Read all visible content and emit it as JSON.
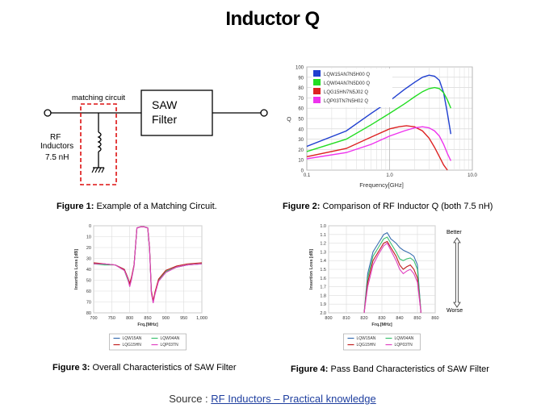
{
  "title": "Inductor Q",
  "fig1": {
    "matching_label": "matching circuit",
    "saw_line1": "SAW",
    "saw_line2": "Filter",
    "rf_line1": "RF",
    "rf_line2": "Inductors",
    "rf_line3": "7.5 nH",
    "caption_bold": "Figure 1:",
    "caption_text": " Example of a Matching Circuit."
  },
  "fig2": {
    "caption_bold": "Figure 2:",
    "caption_text": " Comparison of RF Inductor Q  (both 7.5 nH)",
    "chart_data": {
      "type": "line",
      "title": "",
      "xlabel": "Frequency[GHz]",
      "ylabel": "Q",
      "xscale": "log",
      "xlim": [
        0.1,
        10
      ],
      "ylim": [
        0,
        100
      ],
      "xticks": [
        "0.1",
        "1.0",
        "10.0"
      ],
      "yticks": [
        "0",
        "10",
        "20",
        "30",
        "40",
        "50",
        "60",
        "70",
        "80",
        "90",
        "100"
      ],
      "legend_position": "top-left",
      "grid": true,
      "series": [
        {
          "name": "LQW15AN7N5H00 Q",
          "color": "#1f3fd0",
          "x": [
            0.1,
            0.3,
            0.6,
            1.0,
            1.5,
            2.0,
            2.5,
            3.0,
            3.5,
            4.0,
            4.5,
            5.0,
            5.5
          ],
          "y": [
            23,
            38,
            55,
            67,
            78,
            85,
            90,
            92,
            91,
            87,
            75,
            55,
            35
          ]
        },
        {
          "name": "LQW04AN7N5D00 Q",
          "color": "#22dd22",
          "x": [
            0.1,
            0.3,
            0.6,
            1.0,
            1.5,
            2.0,
            2.5,
            3.0,
            3.5,
            4.0,
            4.5,
            5.0,
            5.5
          ],
          "y": [
            18,
            30,
            44,
            55,
            64,
            71,
            76,
            79,
            80,
            79,
            75,
            68,
            60
          ]
        },
        {
          "name": "LQG15HN7N5J02 Q",
          "color": "#dd2222",
          "x": [
            0.1,
            0.3,
            0.6,
            1.0,
            1.3,
            1.6,
            2.0,
            2.5,
            3.0,
            3.5,
            4.0,
            4.5,
            5.0
          ],
          "y": [
            13,
            21,
            32,
            40,
            42,
            43,
            42,
            38,
            31,
            22,
            13,
            5,
            0
          ]
        },
        {
          "name": "LQP03TN7N5H02 Q",
          "color": "#ee33ee",
          "x": [
            0.1,
            0.3,
            0.6,
            1.0,
            1.5,
            2.0,
            2.5,
            3.0,
            3.5,
            4.0,
            4.5,
            5.0,
            5.5
          ],
          "y": [
            11,
            17,
            25,
            33,
            38,
            41,
            42,
            41,
            38,
            33,
            25,
            16,
            9
          ]
        }
      ]
    }
  },
  "fig3": {
    "caption_bold": "Figure 3:",
    "caption_text": " Overall Characteristics of SAW Filter",
    "chart_data": {
      "type": "line",
      "title": "",
      "xlabel": "Frq.[MHz]",
      "ylabel": "Insertion Loss [dB]",
      "xlim": [
        700,
        1000
      ],
      "ylim": [
        0,
        80
      ],
      "y_inverted": true,
      "xticks": [
        "700",
        "750",
        "800",
        "850",
        "900",
        "950",
        "1,000"
      ],
      "yticks": [
        "0",
        "10",
        "20",
        "30",
        "40",
        "50",
        "60",
        "70",
        "80"
      ],
      "legend_position": "bottom",
      "grid": true,
      "series": [
        {
          "name": "LQW15AN",
          "color": "#3a6fb0",
          "x": [
            700,
            730,
            760,
            785,
            795,
            800,
            805,
            812,
            820,
            830,
            840,
            850,
            855,
            860,
            865,
            870,
            880,
            900,
            930,
            960,
            1000
          ],
          "y": [
            35,
            35,
            36,
            40,
            48,
            54,
            48,
            36,
            2,
            1,
            1,
            2,
            20,
            60,
            70,
            62,
            50,
            42,
            38,
            36,
            35
          ]
        },
        {
          "name": "LQW04AN",
          "color": "#3cc070",
          "x": [
            700,
            730,
            760,
            785,
            795,
            800,
            805,
            812,
            820,
            830,
            840,
            850,
            855,
            860,
            865,
            870,
            880,
            900,
            930,
            960,
            1000
          ],
          "y": [
            35,
            36,
            36,
            41,
            50,
            55,
            49,
            37,
            2,
            1,
            1,
            2,
            21,
            61,
            70,
            62,
            50,
            42,
            38,
            36,
            35
          ]
        },
        {
          "name": "LQG15HN",
          "color": "#c02020",
          "x": [
            700,
            730,
            760,
            785,
            795,
            800,
            805,
            812,
            820,
            830,
            840,
            850,
            855,
            860,
            865,
            870,
            880,
            900,
            930,
            960,
            1000
          ],
          "y": [
            34,
            35,
            36,
            40,
            48,
            53,
            47,
            36,
            2,
            1,
            1,
            2,
            20,
            60,
            69,
            61,
            49,
            41,
            37,
            35,
            34
          ]
        },
        {
          "name": "LQP03TN",
          "color": "#e040c0",
          "x": [
            700,
            730,
            760,
            785,
            795,
            800,
            805,
            812,
            820,
            830,
            840,
            850,
            855,
            860,
            865,
            870,
            880,
            900,
            930,
            960,
            1000
          ],
          "y": [
            35,
            35,
            36,
            41,
            49,
            56,
            49,
            37,
            2,
            1,
            1,
            2,
            21,
            62,
            71,
            63,
            51,
            43,
            38,
            36,
            35
          ]
        }
      ]
    }
  },
  "fig4": {
    "caption_bold": "Figure 4:",
    "caption_text": " Pass Band Characteristics of SAW Filter",
    "better": "Better",
    "worse": "Worse",
    "chart_data": {
      "type": "line",
      "title": "",
      "xlabel": "Frq.[MHz]",
      "ylabel": "Insertion Loss [dB]",
      "xlim": [
        800,
        860
      ],
      "ylim": [
        1.0,
        2.0
      ],
      "y_inverted": true,
      "xticks": [
        "800",
        "810",
        "820",
        "830",
        "840",
        "850",
        "860"
      ],
      "yticks": [
        "1.0",
        "1.1",
        "1.2",
        "1.3",
        "1.4",
        "1.5",
        "1.6",
        "1.7",
        "1.8",
        "1.9",
        "2.0"
      ],
      "legend_position": "bottom",
      "grid": true,
      "series": [
        {
          "name": "LQW15AN",
          "color": "#3a6fb0",
          "x": [
            820,
            822,
            825,
            828,
            831,
            833,
            835,
            838,
            840,
            842,
            844,
            846,
            848,
            850,
            852
          ],
          "y": [
            2.0,
            1.55,
            1.3,
            1.2,
            1.1,
            1.08,
            1.15,
            1.2,
            1.25,
            1.28,
            1.3,
            1.32,
            1.35,
            1.45,
            2.0
          ]
        },
        {
          "name": "LQW04AN",
          "color": "#3cc070",
          "x": [
            820,
            822,
            825,
            828,
            831,
            833,
            835,
            838,
            840,
            842,
            844,
            846,
            848,
            850,
            852
          ],
          "y": [
            2.0,
            1.6,
            1.35,
            1.25,
            1.15,
            1.13,
            1.2,
            1.3,
            1.38,
            1.4,
            1.38,
            1.37,
            1.4,
            1.5,
            2.0
          ]
        },
        {
          "name": "LQG15HN",
          "color": "#c02020",
          "x": [
            820,
            822,
            825,
            828,
            831,
            833,
            835,
            838,
            840,
            842,
            844,
            846,
            848,
            850,
            852
          ],
          "y": [
            2.0,
            1.65,
            1.4,
            1.3,
            1.2,
            1.18,
            1.25,
            1.35,
            1.45,
            1.5,
            1.47,
            1.45,
            1.5,
            1.6,
            2.0
          ]
        },
        {
          "name": "LQP03TN",
          "color": "#e040c0",
          "x": [
            820,
            822,
            825,
            828,
            831,
            833,
            835,
            838,
            840,
            842,
            844,
            846,
            848,
            850,
            852
          ],
          "y": [
            2.0,
            1.7,
            1.45,
            1.33,
            1.23,
            1.2,
            1.28,
            1.4,
            1.5,
            1.55,
            1.52,
            1.5,
            1.55,
            1.65,
            2.0
          ]
        }
      ]
    }
  },
  "source": {
    "prefix": "Source : ",
    "link_text": "RF Inductors – Practical knowledge "
  }
}
